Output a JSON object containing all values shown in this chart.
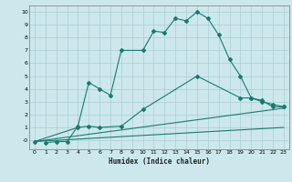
{
  "title": "",
  "xlabel": "Humidex (Indice chaleur)",
  "bg_color": "#cce8ec",
  "grid_color": "#aacdd4",
  "line_color": "#1a7a6e",
  "xlim": [
    -0.5,
    23.5
  ],
  "ylim": [
    -0.7,
    10.5
  ],
  "xticks": [
    0,
    1,
    2,
    3,
    4,
    5,
    6,
    7,
    8,
    9,
    10,
    11,
    12,
    13,
    14,
    15,
    16,
    17,
    18,
    19,
    20,
    21,
    22,
    23
  ],
  "yticks": [
    0,
    1,
    2,
    3,
    4,
    5,
    6,
    7,
    8,
    9,
    10
  ],
  "line1_x": [
    1,
    2,
    3,
    4,
    5,
    6,
    7,
    8,
    10,
    11,
    12,
    13,
    14,
    15,
    16,
    17,
    18,
    19,
    20,
    21,
    22,
    23
  ],
  "line1_y": [
    -0.2,
    -0.1,
    -0.1,
    1.1,
    4.5,
    4.0,
    3.5,
    7.0,
    7.0,
    8.5,
    8.4,
    9.5,
    9.3,
    10.0,
    9.5,
    8.2,
    6.3,
    5.0,
    3.3,
    3.1,
    2.6,
    2.6
  ],
  "line2_x": [
    0,
    4,
    5,
    6,
    8,
    10,
    15,
    19,
    20,
    21,
    22,
    23
  ],
  "line2_y": [
    -0.1,
    1.0,
    1.1,
    1.0,
    1.1,
    2.4,
    5.0,
    3.3,
    3.3,
    3.0,
    2.8,
    2.6
  ],
  "line3_x": [
    0,
    23
  ],
  "line3_y": [
    -0.1,
    2.5
  ],
  "line4_x": [
    0,
    23
  ],
  "line4_y": [
    -0.1,
    1.0
  ]
}
